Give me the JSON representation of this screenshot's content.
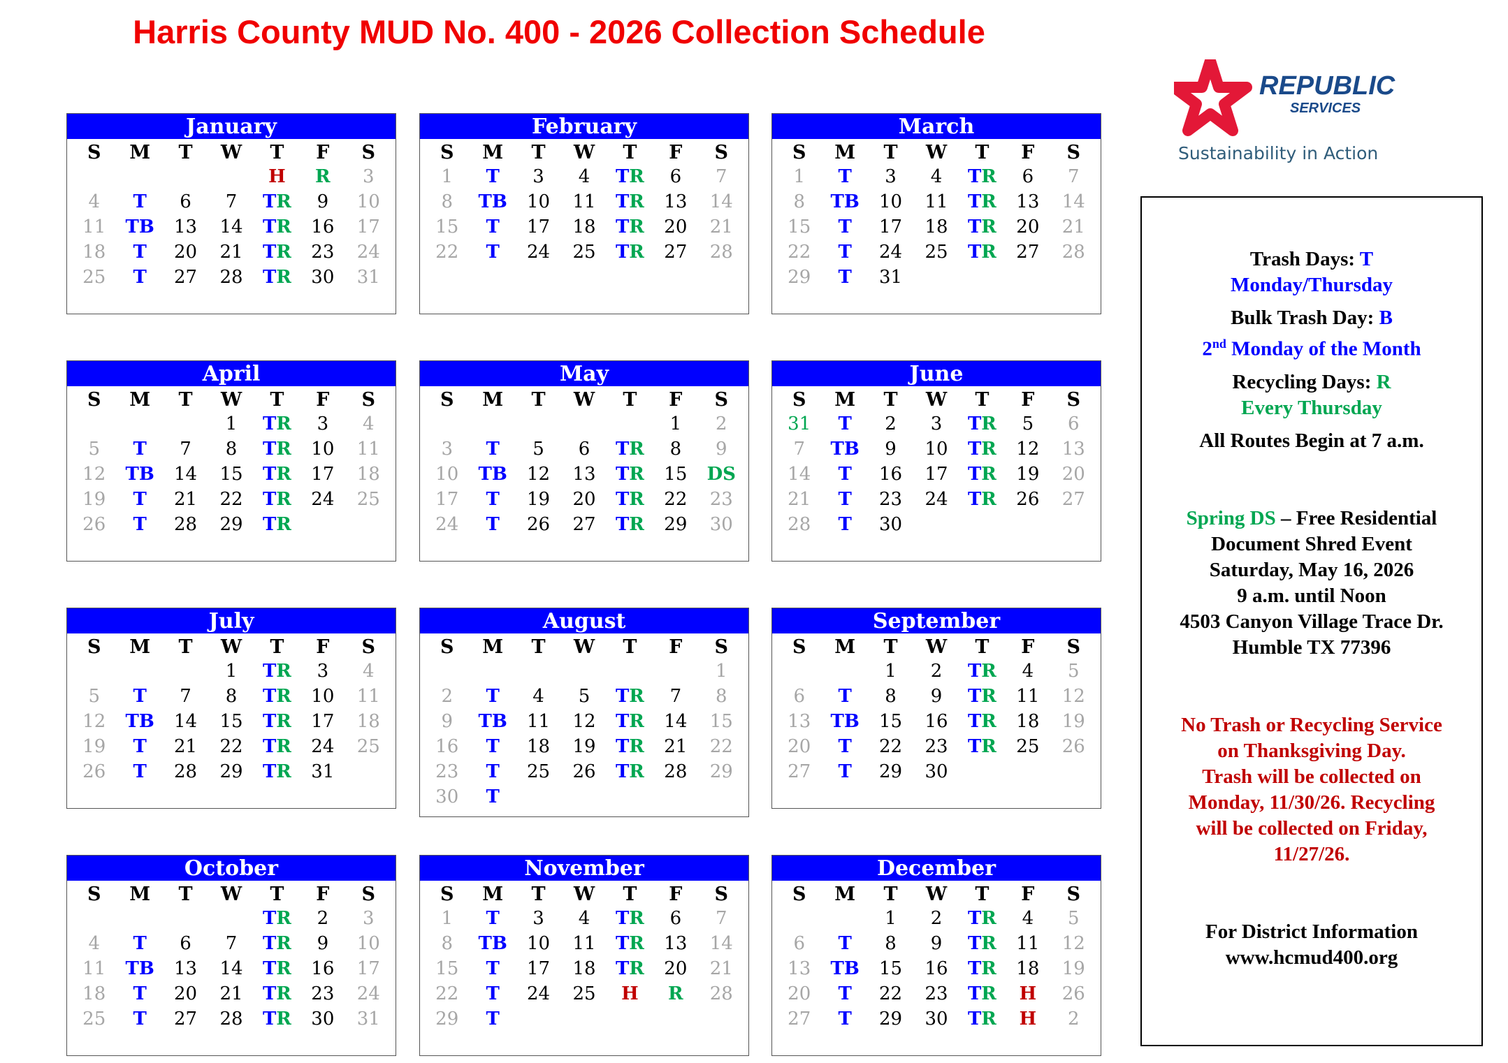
{
  "title": "Harris County MUD No. 400 - 2026 Collection Schedule",
  "logo": {
    "brand": "REPUBLIC",
    "sub": "SERVICES",
    "tagline": "Sustainability in Action"
  },
  "weekdays": [
    "S",
    "M",
    "T",
    "W",
    "T",
    "F",
    "S"
  ],
  "colors": {
    "header": "#0000ff",
    "trash": "#0000ff",
    "recycle": "#00a651",
    "holiday": "#c00000",
    "weekend": "#a6a6a6"
  },
  "months": [
    {
      "name": "January",
      "weeks": [
        [
          "",
          "",
          "",
          "",
          "H",
          "R",
          "3"
        ],
        [
          "4",
          "T",
          "6",
          "7",
          "TR",
          "9",
          "10"
        ],
        [
          "11",
          "TB",
          "13",
          "14",
          "TR",
          "16",
          "17"
        ],
        [
          "18",
          "T",
          "20",
          "21",
          "TR",
          "23",
          "24"
        ],
        [
          "25",
          "T",
          "27",
          "28",
          "TR",
          "30",
          "31"
        ]
      ]
    },
    {
      "name": "February",
      "weeks": [
        [
          "1",
          "T",
          "3",
          "4",
          "TR",
          "6",
          "7"
        ],
        [
          "8",
          "TB",
          "10",
          "11",
          "TR",
          "13",
          "14"
        ],
        [
          "15",
          "T",
          "17",
          "18",
          "TR",
          "20",
          "21"
        ],
        [
          "22",
          "T",
          "24",
          "25",
          "TR",
          "27",
          "28"
        ]
      ]
    },
    {
      "name": "March",
      "weeks": [
        [
          "1",
          "T",
          "3",
          "4",
          "TR",
          "6",
          "7"
        ],
        [
          "8",
          "TB",
          "10",
          "11",
          "TR",
          "13",
          "14"
        ],
        [
          "15",
          "T",
          "17",
          "18",
          "TR",
          "20",
          "21"
        ],
        [
          "22",
          "T",
          "24",
          "25",
          "TR",
          "27",
          "28"
        ],
        [
          "29",
          "T",
          "31",
          "",
          "",
          "",
          ""
        ]
      ]
    },
    {
      "name": "April",
      "weeks": [
        [
          "",
          "",
          "",
          "1",
          "TR",
          "3",
          "4"
        ],
        [
          "5",
          "T",
          "7",
          "8",
          "TR",
          "10",
          "11"
        ],
        [
          "12",
          "TB",
          "14",
          "15",
          "TR",
          "17",
          "18"
        ],
        [
          "19",
          "T",
          "21",
          "22",
          "TR",
          "24",
          "25"
        ],
        [
          "26",
          "T",
          "28",
          "29",
          "TR",
          "",
          ""
        ]
      ]
    },
    {
      "name": "May",
      "weeks": [
        [
          "",
          "",
          "",
          "",
          "",
          "1",
          "2"
        ],
        [
          "3",
          "T",
          "5",
          "6",
          "TR",
          "8",
          "9"
        ],
        [
          "10",
          "TB",
          "12",
          "13",
          "TR",
          "15",
          "DS"
        ],
        [
          "17",
          "T",
          "19",
          "20",
          "TR",
          "22",
          "23"
        ],
        [
          "24",
          "T",
          "26",
          "27",
          "TR",
          "29",
          "30"
        ]
      ]
    },
    {
      "name": "June",
      "weeks": [
        [
          "31",
          "T",
          "2",
          "3",
          "TR",
          "5",
          "6"
        ],
        [
          "7",
          "TB",
          "9",
          "10",
          "TR",
          "12",
          "13"
        ],
        [
          "14",
          "T",
          "16",
          "17",
          "TR",
          "19",
          "20"
        ],
        [
          "21",
          "T",
          "23",
          "24",
          "TR",
          "26",
          "27"
        ],
        [
          "28",
          "T",
          "30",
          "",
          "",
          "",
          ""
        ]
      ],
      "green_cells": [
        "0-0"
      ]
    },
    {
      "name": "July",
      "weeks": [
        [
          "",
          "",
          "",
          "1",
          "TR",
          "3",
          "4"
        ],
        [
          "5",
          "T",
          "7",
          "8",
          "TR",
          "10",
          "11"
        ],
        [
          "12",
          "TB",
          "14",
          "15",
          "TR",
          "17",
          "18"
        ],
        [
          "19",
          "T",
          "21",
          "22",
          "TR",
          "24",
          "25"
        ],
        [
          "26",
          "T",
          "28",
          "29",
          "TR",
          "31",
          ""
        ]
      ]
    },
    {
      "name": "August",
      "weeks": [
        [
          "",
          "",
          "",
          "",
          "",
          "",
          "1"
        ],
        [
          "2",
          "T",
          "4",
          "5",
          "TR",
          "7",
          "8"
        ],
        [
          "9",
          "TB",
          "11",
          "12",
          "TR",
          "14",
          "15"
        ],
        [
          "16",
          "T",
          "18",
          "19",
          "TR",
          "21",
          "22"
        ],
        [
          "23",
          "T",
          "25",
          "26",
          "TR",
          "28",
          "29"
        ],
        [
          "30",
          "T",
          "",
          "",
          "",
          "",
          ""
        ]
      ]
    },
    {
      "name": "September",
      "weeks": [
        [
          "",
          "",
          "1",
          "2",
          "TR",
          "4",
          "5"
        ],
        [
          "6",
          "T",
          "8",
          "9",
          "TR",
          "11",
          "12"
        ],
        [
          "13",
          "TB",
          "15",
          "16",
          "TR",
          "18",
          "19"
        ],
        [
          "20",
          "T",
          "22",
          "23",
          "TR",
          "25",
          "26"
        ],
        [
          "27",
          "T",
          "29",
          "30",
          "",
          "",
          ""
        ]
      ]
    },
    {
      "name": "October",
      "weeks": [
        [
          "",
          "",
          "",
          "",
          "TR",
          "2",
          "3"
        ],
        [
          "4",
          "T",
          "6",
          "7",
          "TR",
          "9",
          "10"
        ],
        [
          "11",
          "TB",
          "13",
          "14",
          "TR",
          "16",
          "17"
        ],
        [
          "18",
          "T",
          "20",
          "21",
          "TR",
          "23",
          "24"
        ],
        [
          "25",
          "T",
          "27",
          "28",
          "TR",
          "30",
          "31"
        ]
      ]
    },
    {
      "name": "November",
      "weeks": [
        [
          "1",
          "T",
          "3",
          "4",
          "TR",
          "6",
          "7"
        ],
        [
          "8",
          "TB",
          "10",
          "11",
          "TR",
          "13",
          "14"
        ],
        [
          "15",
          "T",
          "17",
          "18",
          "TR",
          "20",
          "21"
        ],
        [
          "22",
          "T",
          "24",
          "25",
          "H",
          "R",
          "28"
        ],
        [
          "29",
          "T",
          "",
          "",
          "",
          "",
          ""
        ]
      ]
    },
    {
      "name": "December",
      "weeks": [
        [
          "",
          "",
          "1",
          "2",
          "TR",
          "4",
          "5"
        ],
        [
          "6",
          "T",
          "8",
          "9",
          "TR",
          "11",
          "12"
        ],
        [
          "13",
          "TB",
          "15",
          "16",
          "TR",
          "18",
          "19"
        ],
        [
          "20",
          "T",
          "22",
          "23",
          "TR",
          "H",
          "26"
        ],
        [
          "27",
          "T",
          "29",
          "30",
          "TR",
          "H",
          "2"
        ]
      ]
    }
  ],
  "legend": {
    "trash_label": "Trash Days: ",
    "trash_code": "T",
    "trash_days": "Monday/Thursday",
    "bulk_label": "Bulk Trash Day: ",
    "bulk_code": "B",
    "bulk_ord": "2",
    "bulk_sup": "nd",
    "bulk_days": " Monday of the Month",
    "recycle_label": "Recycling Days: ",
    "recycle_code": "R",
    "recycle_days": "Every Thursday",
    "routes": "All Routes Begin at 7 a.m.",
    "event_code": "Spring DS",
    "event_title": " – Free Residential",
    "event_lines": [
      "Document Shred Event",
      "Saturday, May 16, 2026",
      "9 a.m. until Noon",
      "4503 Canyon Village Trace Dr.",
      "Humble TX 77396"
    ],
    "notice_lines": [
      "No Trash or Recycling Service",
      "on Thanksgiving Day.",
      "Trash will be collected on",
      "Monday, 11/30/26.  Recycling",
      "will be collected on Friday,",
      "11/27/26."
    ],
    "contact_title": "For District Information",
    "contact_url": "www.hcmud400.org"
  }
}
